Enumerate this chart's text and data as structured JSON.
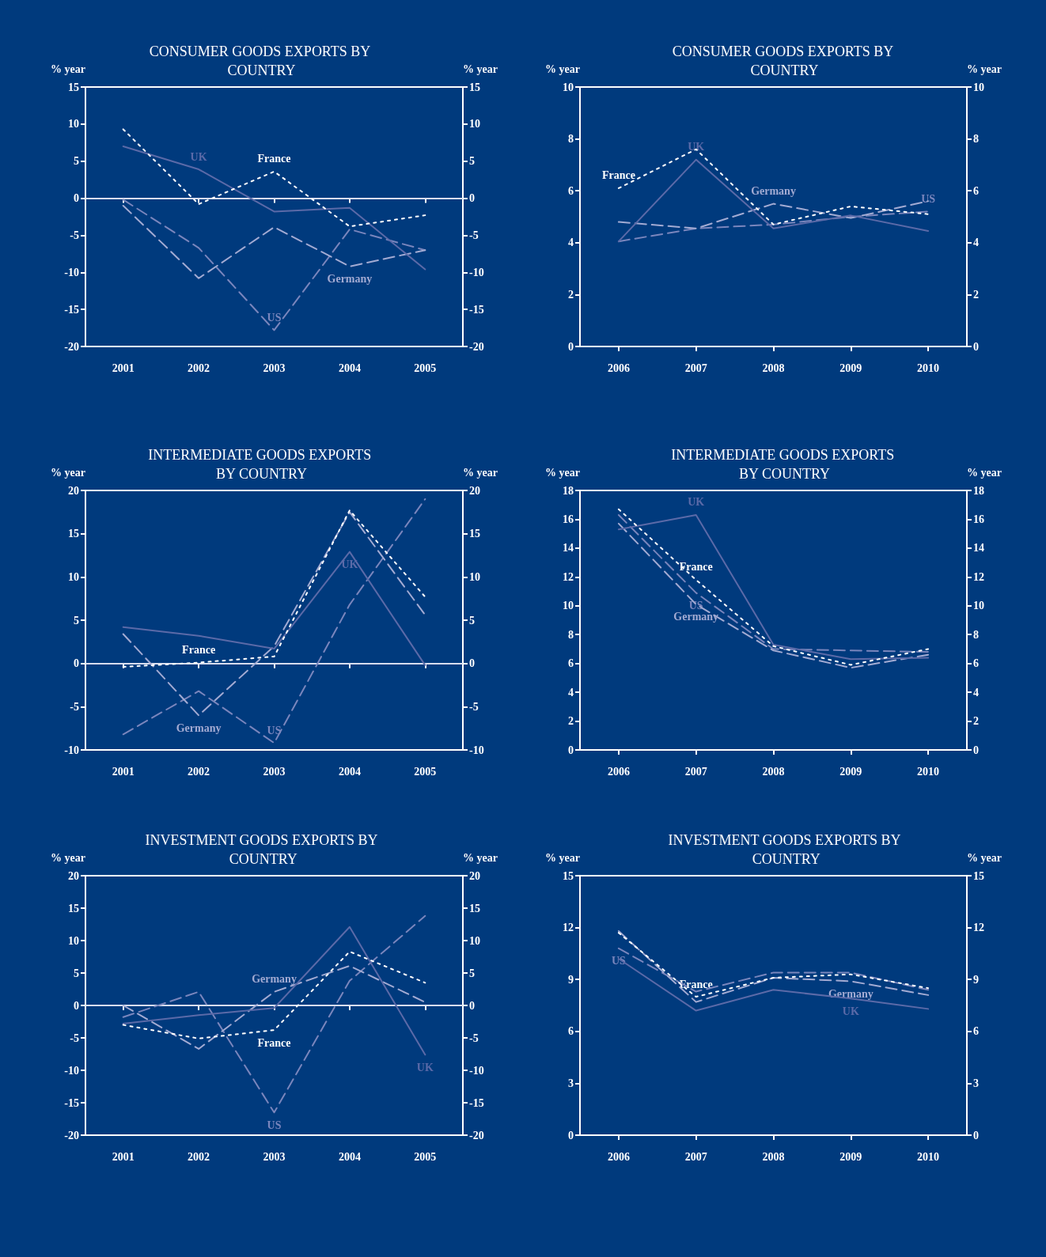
{
  "chart_data": [
    {
      "type": "line",
      "title": "CONSUMER GOODS EXPORTS BY COUNTRY",
      "ylabel": "% year",
      "y2label": "% year",
      "x": [
        2001,
        2002,
        2003,
        2004,
        2005
      ],
      "xlim": [
        2000.5,
        2005.5
      ],
      "xticks": [
        2001,
        2002,
        2003,
        2004,
        2005
      ],
      "ylim": [
        -20,
        15
      ],
      "yticks": [
        -20,
        -15,
        -10,
        -5,
        0,
        5,
        10,
        15
      ],
      "y2lim": [
        -20,
        15
      ],
      "y2ticks": [
        -20,
        -15,
        -10,
        -5,
        0,
        5,
        10,
        15
      ],
      "grid": false,
      "legend": false,
      "ref_lines": [
        {
          "axis": "y",
          "value": 0,
          "color": "#d8dcee"
        }
      ],
      "series": [
        {
          "name": "France",
          "color": "#ffffff",
          "line_style": "dotted",
          "values": [
            9.3,
            -0.8,
            3.6,
            -3.8,
            -2.3
          ]
        },
        {
          "name": "UK",
          "color": "#5b6aa8",
          "line_style": "solid",
          "values": [
            7,
            3.9,
            -1.8,
            -1.3,
            -9.6
          ]
        },
        {
          "name": "Germany",
          "color": "#a3abd3",
          "line_style": "dashed",
          "values": [
            -1,
            -10.8,
            -3.9,
            -9.2,
            -7
          ]
        },
        {
          "name": "US",
          "color": "#7a86bd",
          "line_style": "dashed",
          "values": [
            -0.2,
            -6.7,
            -17.8,
            -4.2,
            -7
          ]
        }
      ]
    },
    {
      "type": "line",
      "title": "CONSUMER GOODS EXPORTS BY COUNTRY",
      "ylabel": "% year",
      "y2label": "% year",
      "x": [
        2006,
        2007,
        2008,
        2009,
        2010
      ],
      "xlim": [
        2005.5,
        2010.5
      ],
      "xticks": [
        2006,
        2007,
        2008,
        2009,
        2010
      ],
      "ylim": [
        0,
        10
      ],
      "yticks": [
        0,
        2,
        4,
        6,
        8,
        10
      ],
      "y2lim": [
        0,
        10
      ],
      "y2ticks": [
        0,
        2,
        4,
        6,
        8,
        10
      ],
      "grid": false,
      "legend": false,
      "series": [
        {
          "name": "France",
          "color": "#ffffff",
          "line_style": "dotted",
          "values": [
            6.1,
            7.6,
            4.7,
            5.4,
            5.1
          ]
        },
        {
          "name": "UK",
          "color": "#5b6aa8",
          "line_style": "solid",
          "values": [
            4.05,
            7.2,
            4.55,
            5.05,
            4.45
          ]
        },
        {
          "name": "Germany",
          "color": "#a3abd3",
          "line_style": "dashed",
          "values": [
            4.8,
            4.55,
            5.5,
            4.95,
            5.6
          ]
        },
        {
          "name": "US",
          "color": "#7a86bd",
          "line_style": "dashed",
          "values": [
            4.05,
            4.55,
            4.7,
            5.0,
            5.2
          ]
        }
      ]
    },
    {
      "type": "line",
      "title": "INTERMEDIATE GOODS EXPORTS BY COUNTRY",
      "ylabel": "% year",
      "y2label": "% year",
      "x": [
        2001,
        2002,
        2003,
        2004,
        2005
      ],
      "xlim": [
        2000.5,
        2005.5
      ],
      "xticks": [
        2001,
        2002,
        2003,
        2004,
        2005
      ],
      "ylim": [
        -10,
        20
      ],
      "yticks": [
        -10,
        -5,
        0,
        5,
        10,
        15,
        20
      ],
      "y2lim": [
        -10,
        20
      ],
      "y2ticks": [
        -10,
        -5,
        0,
        5,
        10,
        15,
        20
      ],
      "grid": false,
      "legend": false,
      "ref_lines": [
        {
          "axis": "y",
          "value": 0,
          "color": "#d8dcee"
        }
      ],
      "series": [
        {
          "name": "France",
          "color": "#ffffff",
          "line_style": "dotted",
          "values": [
            -0.4,
            0.1,
            0.8,
            17.7,
            7.7
          ]
        },
        {
          "name": "UK",
          "color": "#5b6aa8",
          "line_style": "solid",
          "values": [
            4.2,
            3.2,
            1.7,
            12.9,
            -0.2
          ]
        },
        {
          "name": "Germany",
          "color": "#a3abd3",
          "line_style": "dashed",
          "values": [
            3.4,
            -6,
            2,
            17.5,
            5.6
          ]
        },
        {
          "name": "US",
          "color": "#7a86bd",
          "line_style": "dashed",
          "values": [
            -8.2,
            -3.2,
            -9.2,
            6.8,
            19
          ]
        }
      ]
    },
    {
      "type": "line",
      "title": "INTERMEDIATE GOODS EXPORTS BY COUNTRY",
      "ylabel": "% year",
      "y2label": "% year",
      "x": [
        2006,
        2007,
        2008,
        2009,
        2010
      ],
      "xlim": [
        2005.5,
        2010.5
      ],
      "xticks": [
        2006,
        2007,
        2008,
        2009,
        2010
      ],
      "ylim": [
        0,
        18
      ],
      "yticks": [
        0,
        2,
        4,
        6,
        8,
        10,
        12,
        14,
        16,
        18
      ],
      "y2lim": [
        0,
        18
      ],
      "y2ticks": [
        0,
        2,
        4,
        6,
        8,
        10,
        12,
        14,
        16,
        18
      ],
      "grid": false,
      "legend": false,
      "series": [
        {
          "name": "France",
          "color": "#ffffff",
          "line_style": "dotted",
          "values": [
            16.7,
            11.8,
            7.2,
            5.9,
            7.0
          ]
        },
        {
          "name": "UK",
          "color": "#5b6aa8",
          "line_style": "solid",
          "values": [
            15.3,
            16.3,
            7.3,
            6.3,
            6.4
          ]
        },
        {
          "name": "Germany",
          "color": "#a3abd3",
          "line_style": "dashed",
          "values": [
            15.7,
            10.1,
            6.9,
            5.7,
            6.6
          ]
        },
        {
          "name": "US",
          "color": "#7a86bd",
          "line_style": "dashed",
          "values": [
            16.3,
            10.9,
            7.0,
            6.9,
            6.8
          ]
        }
      ]
    },
    {
      "type": "line",
      "title": "INVESTMENT GOODS EXPORTS BY COUNTRY",
      "ylabel": "% year",
      "y2label": "% year",
      "x": [
        2001,
        2002,
        2003,
        2004,
        2005
      ],
      "xlim": [
        2000.5,
        2005.5
      ],
      "xticks": [
        2001,
        2002,
        2003,
        2004,
        2005
      ],
      "ylim": [
        -20,
        20
      ],
      "yticks": [
        -20,
        -15,
        -10,
        -5,
        0,
        5,
        10,
        15,
        20
      ],
      "y2lim": [
        -20,
        20
      ],
      "y2ticks": [
        -20,
        -15,
        -10,
        -5,
        0,
        5,
        10,
        15,
        20
      ],
      "grid": false,
      "legend": false,
      "ref_lines": [
        {
          "axis": "y",
          "value": 0,
          "color": "#d8dcee"
        }
      ],
      "series": [
        {
          "name": "France",
          "color": "#ffffff",
          "line_style": "dotted",
          "values": [
            -3,
            -5.1,
            -3.8,
            8.3,
            3.5
          ]
        },
        {
          "name": "UK",
          "color": "#5b6aa8",
          "line_style": "solid",
          "values": [
            -2.8,
            -1.5,
            -0.4,
            12.1,
            -7.6
          ]
        },
        {
          "name": "Germany",
          "color": "#a3abd3",
          "line_style": "dashed",
          "values": [
            0,
            -6.7,
            2.1,
            6.1,
            0.5
          ]
        },
        {
          "name": "US",
          "color": "#7a86bd",
          "line_style": "dashed",
          "values": [
            -1.8,
            2.1,
            -16.5,
            3.8,
            13.8
          ]
        }
      ]
    },
    {
      "type": "line",
      "title": "INVESTMENT GOODS EXPORTS BY COUNTRY",
      "ylabel": "% year",
      "y2label": "% year",
      "x": [
        2006,
        2007,
        2008,
        2009,
        2010
      ],
      "xlim": [
        2005.5,
        2010.5
      ],
      "xticks": [
        2006,
        2007,
        2008,
        2009,
        2010
      ],
      "ylim": [
        0,
        15
      ],
      "yticks": [
        0,
        3,
        6,
        9,
        12,
        15
      ],
      "y2lim": [
        0,
        15
      ],
      "y2ticks": [
        0,
        3,
        6,
        9,
        12,
        15
      ],
      "grid": false,
      "legend": false,
      "series": [
        {
          "name": "France",
          "color": "#ffffff",
          "line_style": "dotted",
          "values": [
            11.7,
            8.0,
            9.1,
            9.3,
            8.5
          ]
        },
        {
          "name": "UK",
          "color": "#5b6aa8",
          "line_style": "solid",
          "values": [
            10.2,
            7.2,
            8.4,
            7.9,
            7.3
          ]
        },
        {
          "name": "Germany",
          "color": "#a3abd3",
          "line_style": "dashed",
          "values": [
            11.8,
            7.7,
            9.1,
            8.9,
            8.1
          ]
        },
        {
          "name": "US",
          "color": "#7a86bd",
          "line_style": "dashed",
          "values": [
            10.8,
            8.3,
            9.4,
            9.4,
            8.4
          ]
        }
      ]
    }
  ]
}
